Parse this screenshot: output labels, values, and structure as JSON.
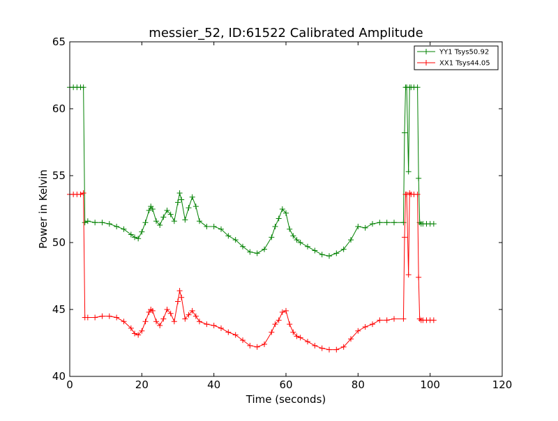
{
  "chart_data": {
    "type": "line",
    "title": "messier_52, ID:61522 Calibrated Amplitude",
    "xlabel": "Time (seconds)",
    "ylabel": "Power in Kelvin",
    "xlim": [
      0,
      120
    ],
    "ylim": [
      40,
      65
    ],
    "xticks": [
      0,
      20,
      40,
      60,
      80,
      100,
      120
    ],
    "yticks": [
      40,
      45,
      50,
      55,
      60,
      65
    ],
    "grid": false,
    "legend_position": "top-right",
    "marker": "plus",
    "series": [
      {
        "name": "YY1 Tsys50.92",
        "color": "#008000",
        "x": [
          0,
          1,
          2,
          3,
          3.8,
          4.2,
          5,
          7,
          9,
          11,
          13,
          15,
          17,
          18,
          19,
          20,
          21,
          22,
          22.5,
          23,
          24,
          25,
          26,
          27,
          28,
          29,
          30,
          30.5,
          31,
          32,
          33,
          34,
          35,
          36,
          38,
          40,
          42,
          44,
          46,
          48,
          50,
          52,
          54,
          56,
          57,
          58,
          59,
          60,
          61,
          62,
          63,
          64,
          66,
          68,
          70,
          72,
          74,
          76,
          78,
          80,
          82,
          84,
          86,
          88,
          90,
          92.6,
          92.9,
          93.2,
          93.5,
          94,
          94.3,
          94.7,
          95.5,
          96.5,
          96.8,
          97.1,
          97.5,
          98,
          99,
          100,
          101
        ],
        "values": [
          61.6,
          61.6,
          61.6,
          61.6,
          61.6,
          51.5,
          51.6,
          51.5,
          51.5,
          51.4,
          51.2,
          51.0,
          50.6,
          50.4,
          50.3,
          50.8,
          51.5,
          52.4,
          52.7,
          52.5,
          51.6,
          51.3,
          51.9,
          52.4,
          52.1,
          51.6,
          53.0,
          53.7,
          53.2,
          51.7,
          52.6,
          53.4,
          52.7,
          51.6,
          51.2,
          51.2,
          51.0,
          50.5,
          50.2,
          49.7,
          49.3,
          49.2,
          49.5,
          50.4,
          51.2,
          51.8,
          52.5,
          52.2,
          51.0,
          50.5,
          50.2,
          50.0,
          49.7,
          49.4,
          49.1,
          49.0,
          49.2,
          49.5,
          50.2,
          51.2,
          51.1,
          51.4,
          51.5,
          51.5,
          51.5,
          51.5,
          58.2,
          61.6,
          61.6,
          55.3,
          61.6,
          61.6,
          61.6,
          61.6,
          54.8,
          51.5,
          51.4,
          51.4,
          51.4,
          51.4,
          51.4
        ]
      },
      {
        "name": "XX1 Tsys44.05",
        "color": "#ff0000",
        "x": [
          0,
          1,
          2,
          3,
          3.8,
          4.2,
          5,
          7,
          9,
          11,
          13,
          15,
          17,
          18,
          19,
          20,
          21,
          22,
          22.5,
          23,
          24,
          25,
          26,
          27,
          28,
          29,
          30,
          30.5,
          31,
          32,
          33,
          34,
          35,
          36,
          38,
          40,
          42,
          44,
          46,
          48,
          50,
          52,
          54,
          56,
          57,
          58,
          59,
          60,
          61,
          62,
          63,
          64,
          66,
          68,
          70,
          72,
          74,
          76,
          78,
          80,
          82,
          84,
          86,
          88,
          90,
          92.6,
          92.9,
          93.2,
          93.5,
          94,
          94.3,
          94.7,
          95.5,
          96.5,
          96.8,
          97.1,
          97.5,
          98,
          99,
          100,
          101
        ],
        "values": [
          53.6,
          53.6,
          53.6,
          53.6,
          53.7,
          44.4,
          44.4,
          44.4,
          44.5,
          44.5,
          44.4,
          44.1,
          43.6,
          43.2,
          43.1,
          43.4,
          44.1,
          44.8,
          45.0,
          44.9,
          44.1,
          43.8,
          44.3,
          45.0,
          44.7,
          44.1,
          45.6,
          46.4,
          45.9,
          44.3,
          44.6,
          44.9,
          44.5,
          44.1,
          43.9,
          43.8,
          43.6,
          43.3,
          43.1,
          42.7,
          42.3,
          42.2,
          42.4,
          43.3,
          43.9,
          44.2,
          44.8,
          44.9,
          43.9,
          43.3,
          43.0,
          42.9,
          42.6,
          42.3,
          42.1,
          42.0,
          42.0,
          42.2,
          42.8,
          43.4,
          43.7,
          43.9,
          44.2,
          44.2,
          44.3,
          44.3,
          50.4,
          53.6,
          53.6,
          47.6,
          53.7,
          53.6,
          53.6,
          53.6,
          47.4,
          44.3,
          44.2,
          44.2,
          44.2,
          44.2,
          44.2
        ]
      }
    ]
  }
}
